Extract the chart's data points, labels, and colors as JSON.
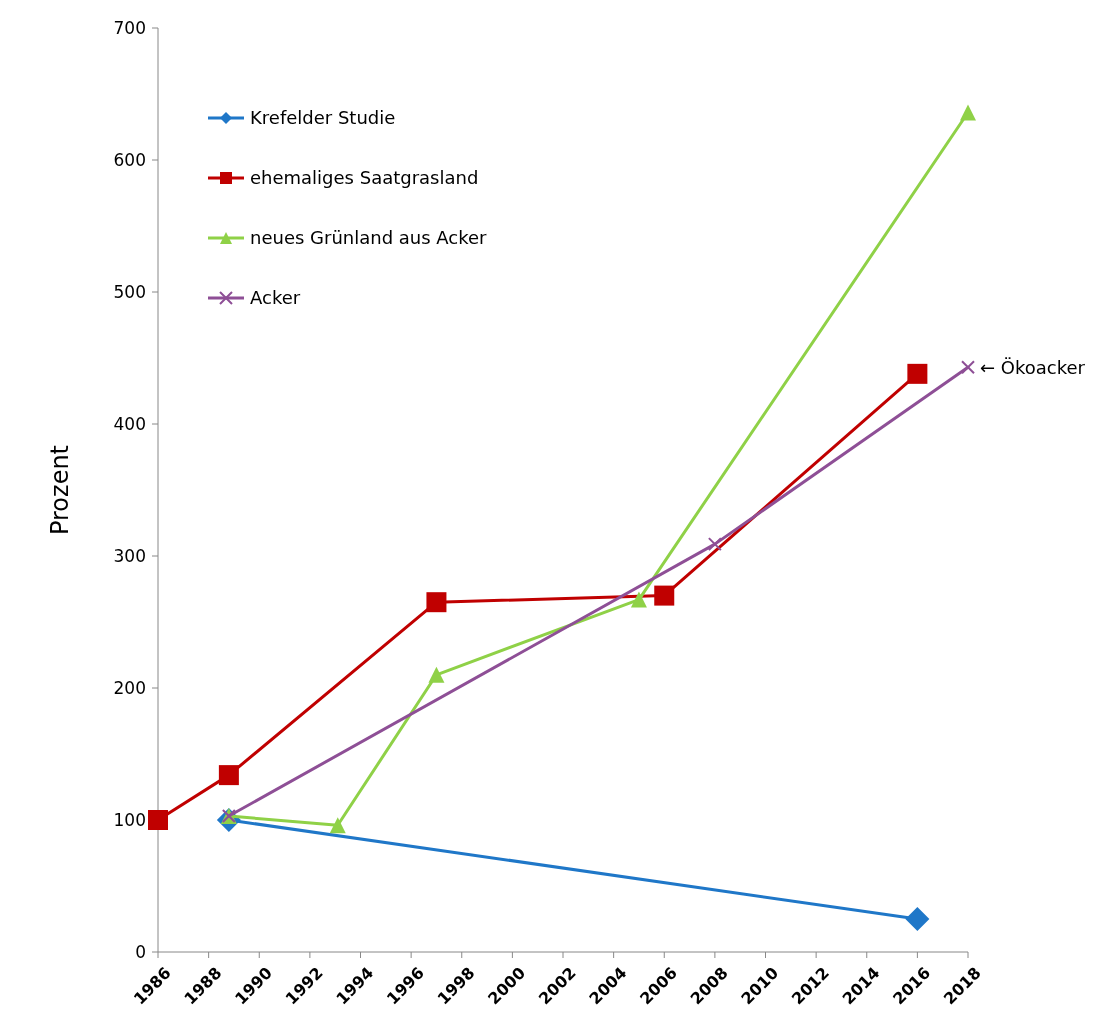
{
  "chart_data": {
    "type": "line",
    "ylabel": "Prozent",
    "xlim": [
      1986,
      2018
    ],
    "xticks": [
      1986,
      1988,
      1990,
      1992,
      1994,
      1996,
      1998,
      2000,
      2002,
      2004,
      2006,
      2008,
      2010,
      2012,
      2014,
      2016,
      2018
    ],
    "ylim": [
      0,
      700
    ],
    "yticks": [
      0,
      100,
      200,
      300,
      400,
      500,
      600,
      700
    ],
    "grid": false,
    "legend": "top left",
    "line_style": "solid",
    "series": [
      {
        "name": "Krefelder  Studie",
        "color": "#1f77c8",
        "marker": "diamond",
        "x": [
          1988.8,
          2016
        ],
        "values": [
          100,
          25
        ]
      },
      {
        "name": "ehemaliges Saatgrasland",
        "color": "#c00000",
        "marker": "square",
        "x": [
          1986,
          1988.8,
          1997,
          2006,
          2016
        ],
        "values": [
          100,
          134,
          265,
          270,
          438
        ]
      },
      {
        "name": "neues Grünland aus Acker",
        "color": "#8fd147",
        "marker": "triangle",
        "x": [
          1988.8,
          1993.1,
          1997,
          2005,
          2018
        ],
        "values": [
          103,
          96,
          210,
          267,
          636
        ]
      },
      {
        "name": "Acker",
        "color": "#8e4f96",
        "marker": "cross",
        "x": [
          1988.8,
          2008,
          2018
        ],
        "values": [
          103,
          309,
          443
        ]
      }
    ],
    "annotations": [
      {
        "text": "← Ökoacker",
        "x": 2018,
        "y": 443
      }
    ]
  }
}
